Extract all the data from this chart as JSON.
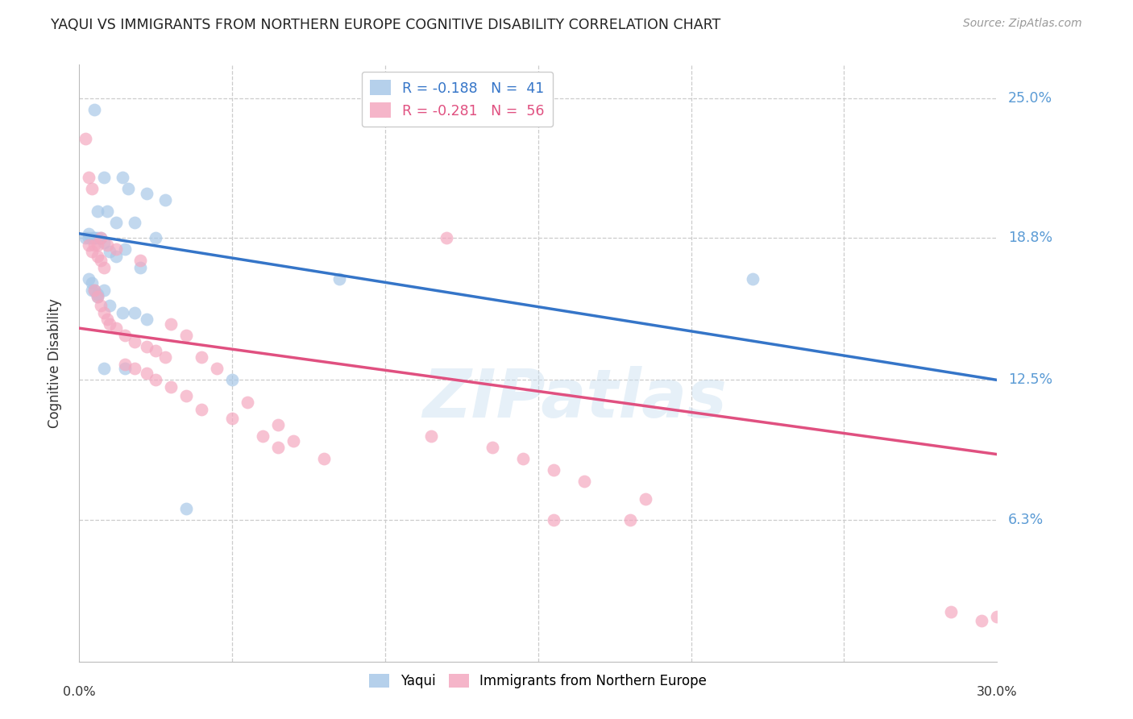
{
  "title": "YAQUI VS IMMIGRANTS FROM NORTHERN EUROPE COGNITIVE DISABILITY CORRELATION CHART",
  "source": "Source: ZipAtlas.com",
  "ylabel": "Cognitive Disability",
  "x_min": 0.0,
  "x_max": 0.3,
  "y_ticks": [
    0.063,
    0.125,
    0.188,
    0.25
  ],
  "y_tick_labels": [
    "6.3%",
    "12.5%",
    "18.8%",
    "25.0%"
  ],
  "watermark": "ZIPatlas",
  "legend_label1": "R = -0.188   N =  41",
  "legend_label2": "R = -0.281   N =  56",
  "series1_color": "#a8c8e8",
  "series2_color": "#f4a8c0",
  "line1_color": "#3575c8",
  "line2_color": "#e05080",
  "background_color": "#ffffff",
  "grid_color": "#cccccc",
  "yaqui_x": [
    0.005,
    0.014,
    0.008,
    0.016,
    0.022,
    0.028,
    0.006,
    0.009,
    0.012,
    0.018,
    0.003,
    0.006,
    0.005,
    0.007,
    0.008,
    0.01,
    0.012,
    0.015,
    0.02,
    0.025,
    0.004,
    0.006,
    0.008,
    0.01,
    0.014,
    0.018,
    0.022,
    0.015,
    0.05,
    0.085,
    0.002,
    0.003,
    0.004,
    0.005,
    0.003,
    0.004,
    0.005,
    0.006,
    0.008,
    0.22,
    0.035
  ],
  "yaqui_y": [
    0.245,
    0.215,
    0.215,
    0.21,
    0.208,
    0.205,
    0.2,
    0.2,
    0.195,
    0.195,
    0.19,
    0.188,
    0.188,
    0.188,
    0.186,
    0.182,
    0.18,
    0.183,
    0.175,
    0.188,
    0.165,
    0.163,
    0.165,
    0.158,
    0.155,
    0.155,
    0.152,
    0.13,
    0.125,
    0.17,
    0.188,
    0.188,
    0.188,
    0.188,
    0.17,
    0.168,
    0.165,
    0.162,
    0.13,
    0.17,
    0.068
  ],
  "immigrants_x": [
    0.002,
    0.003,
    0.004,
    0.005,
    0.006,
    0.003,
    0.004,
    0.006,
    0.007,
    0.008,
    0.005,
    0.006,
    0.007,
    0.008,
    0.009,
    0.01,
    0.012,
    0.015,
    0.018,
    0.022,
    0.025,
    0.028,
    0.015,
    0.018,
    0.022,
    0.025,
    0.03,
    0.035,
    0.04,
    0.05,
    0.06,
    0.07,
    0.065,
    0.08,
    0.115,
    0.135,
    0.145,
    0.155,
    0.165,
    0.185,
    0.03,
    0.035,
    0.04,
    0.045,
    0.055,
    0.065,
    0.007,
    0.009,
    0.012,
    0.02,
    0.285,
    0.295,
    0.12,
    0.155,
    0.18,
    0.3
  ],
  "immigrants_y": [
    0.232,
    0.215,
    0.21,
    0.185,
    0.185,
    0.185,
    0.182,
    0.18,
    0.178,
    0.175,
    0.165,
    0.162,
    0.158,
    0.155,
    0.152,
    0.15,
    0.148,
    0.145,
    0.142,
    0.14,
    0.138,
    0.135,
    0.132,
    0.13,
    0.128,
    0.125,
    0.122,
    0.118,
    0.112,
    0.108,
    0.1,
    0.098,
    0.095,
    0.09,
    0.1,
    0.095,
    0.09,
    0.085,
    0.08,
    0.072,
    0.15,
    0.145,
    0.135,
    0.13,
    0.115,
    0.105,
    0.188,
    0.185,
    0.183,
    0.178,
    0.022,
    0.018,
    0.188,
    0.063,
    0.063,
    0.02
  ]
}
